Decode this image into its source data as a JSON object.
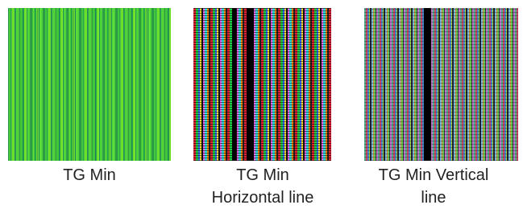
{
  "figures": [
    {
      "caption": [
        "TG Min"
      ]
    },
    {
      "caption": [
        "TG Min",
        "Horizontal line"
      ]
    },
    {
      "caption": [
        "TG Min Vertical",
        "line"
      ]
    }
  ]
}
